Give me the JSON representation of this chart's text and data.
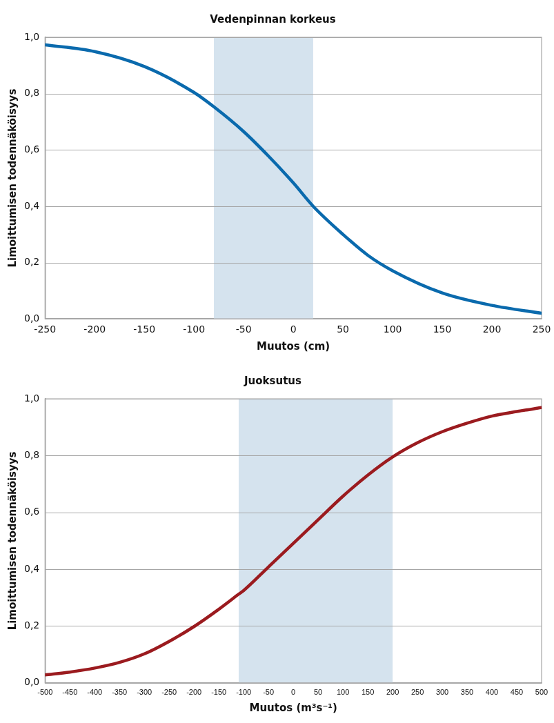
{
  "chart_data": [
    {
      "type": "line",
      "title": "Vedenpinnan korkeus",
      "xlabel": "Muutos (cm)",
      "ylabel": "Limoittumisen todennäköisyys",
      "x": [
        -250,
        -200,
        -150,
        -100,
        -80,
        -50,
        -25,
        0,
        20,
        50,
        75,
        100,
        150,
        200,
        250
      ],
      "series": [
        {
          "color": "#0a6aad",
          "values": [
            0.973,
            0.949,
            0.896,
            0.804,
            0.753,
            0.665,
            0.578,
            0.483,
            0.4,
            0.3,
            0.226,
            0.171,
            0.092,
            0.048,
            0.02
          ]
        }
      ],
      "xlim": [
        -250,
        250
      ],
      "xticks": [
        -250,
        -200,
        -150,
        -100,
        -50,
        0,
        50,
        100,
        150,
        200,
        250
      ],
      "ylim": [
        0,
        1
      ],
      "yticks": [
        {
          "value": 0,
          "label": "0,0"
        },
        {
          "value": 0.2,
          "label": "0,2"
        },
        {
          "value": 0.4,
          "label": "0,4"
        },
        {
          "value": 0.6,
          "label": "0,6"
        },
        {
          "value": 0.8,
          "label": "0,8"
        },
        {
          "value": 1,
          "label": "1,0"
        }
      ],
      "bands": [
        {
          "axis": "x",
          "from": -80,
          "to": 20,
          "color": "#d5e3ee"
        }
      ],
      "grid": "y",
      "legend": false,
      "marker": "none",
      "line_style": "solid"
    },
    {
      "type": "line",
      "title": "Juoksutus",
      "xlabel": "Muutos (m³s⁻¹)",
      "ylabel": "Limoittumisen todennäköisyys",
      "x": [
        -500,
        -450,
        -400,
        -350,
        -300,
        -250,
        -200,
        -150,
        -110,
        -100,
        -50,
        0,
        50,
        100,
        150,
        200,
        250,
        300,
        350,
        400,
        450,
        500
      ],
      "series": [
        {
          "color": "#9b1b1f",
          "values": [
            0.028,
            0.038,
            0.052,
            0.072,
            0.102,
            0.146,
            0.198,
            0.259,
            0.312,
            0.325,
            0.408,
            0.491,
            0.574,
            0.657,
            0.731,
            0.795,
            0.845,
            0.884,
            0.914,
            0.939,
            0.955,
            0.969
          ]
        }
      ],
      "xlim": [
        -500,
        500
      ],
      "xticks": [
        -500,
        -450,
        -400,
        -350,
        -300,
        -250,
        -200,
        -150,
        -100,
        -50,
        0,
        50,
        100,
        150,
        200,
        250,
        300,
        350,
        400,
        450,
        500
      ],
      "ylim": [
        0,
        1
      ],
      "yticks": [
        {
          "value": 0,
          "label": "0,0"
        },
        {
          "value": 0.2,
          "label": "0,2"
        },
        {
          "value": 0.4,
          "label": "0,4"
        },
        {
          "value": 0.6,
          "label": "0,6"
        },
        {
          "value": 0.8,
          "label": "0,8"
        },
        {
          "value": 1,
          "label": "1,0"
        }
      ],
      "bands": [
        {
          "axis": "x",
          "from": -110,
          "to": 200,
          "color": "#d5e3ee"
        }
      ],
      "grid": "y",
      "legend": false,
      "marker": "none",
      "line_style": "solid"
    }
  ]
}
